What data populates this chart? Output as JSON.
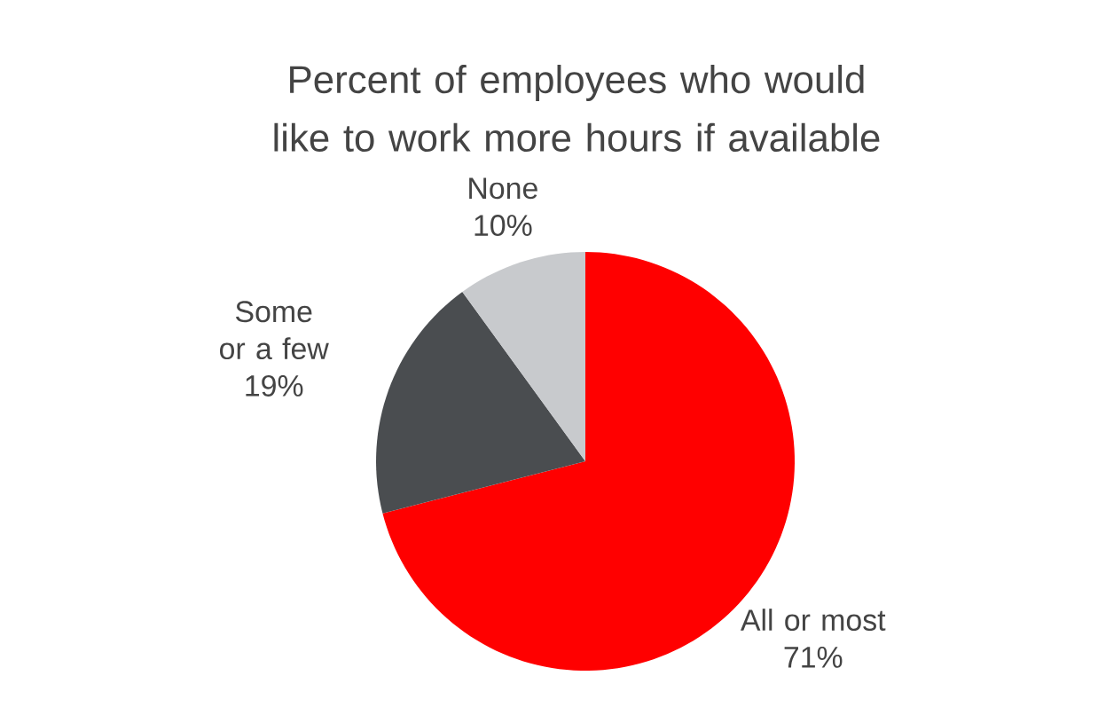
{
  "chart_data": {
    "type": "pie",
    "title": "Percent of employees who would like to work more hours if available",
    "categories": [
      "All or most",
      "Some or a few",
      "None"
    ],
    "values": [
      71,
      19,
      10
    ],
    "value_labels": [
      "71%",
      "19%",
      "10%"
    ],
    "colors": [
      "#ff0000",
      "#4a4d50",
      "#c8cacd"
    ]
  }
}
